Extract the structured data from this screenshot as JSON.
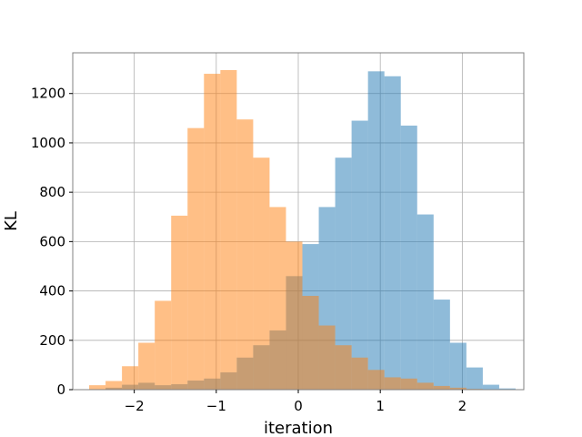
{
  "chart_data": {
    "type": "histogram",
    "xlabel": "iteration",
    "ylabel": "KL",
    "xlim": [
      -2.75,
      2.75
    ],
    "ylim": [
      0,
      1365
    ],
    "grid": true,
    "xticks": [
      {
        "value": -2,
        "label": "−2"
      },
      {
        "value": -1,
        "label": "−1"
      },
      {
        "value": 0,
        "label": "0"
      },
      {
        "value": 1,
        "label": "1"
      },
      {
        "value": 2,
        "label": "2"
      }
    ],
    "yticks": [
      0,
      200,
      400,
      600,
      800,
      1000,
      1200
    ],
    "series": [
      {
        "color": "#1f77b4",
        "opacity": 0.5,
        "bins": [
          [
            -2.55,
            -2.35,
            2
          ],
          [
            -2.35,
            -2.15,
            8
          ],
          [
            -2.15,
            -1.95,
            20
          ],
          [
            -1.95,
            -1.75,
            28
          ],
          [
            -1.75,
            -1.55,
            18
          ],
          [
            -1.55,
            -1.35,
            22
          ],
          [
            -1.35,
            -1.15,
            37
          ],
          [
            -1.15,
            -0.95,
            45
          ],
          [
            -0.95,
            -0.75,
            70
          ],
          [
            -0.75,
            -0.55,
            130
          ],
          [
            -0.55,
            -0.35,
            180
          ],
          [
            -0.35,
            -0.15,
            240
          ],
          [
            -0.15,
            0.05,
            460
          ],
          [
            0.05,
            0.25,
            590
          ],
          [
            0.25,
            0.45,
            740
          ],
          [
            0.45,
            0.65,
            940
          ],
          [
            0.65,
            0.85,
            1090
          ],
          [
            0.85,
            1.05,
            1290
          ],
          [
            1.05,
            1.25,
            1270
          ],
          [
            1.25,
            1.45,
            1070
          ],
          [
            1.45,
            1.65,
            710
          ],
          [
            1.65,
            1.85,
            365
          ],
          [
            1.85,
            2.05,
            190
          ],
          [
            2.05,
            2.25,
            90
          ],
          [
            2.25,
            2.45,
            20
          ],
          [
            2.45,
            2.65,
            5
          ]
        ]
      },
      {
        "color": "#ff7f0e",
        "opacity": 0.5,
        "bins": [
          [
            -2.55,
            -2.35,
            18
          ],
          [
            -2.35,
            -2.15,
            35
          ],
          [
            -2.15,
            -1.95,
            95
          ],
          [
            -1.95,
            -1.75,
            190
          ],
          [
            -1.75,
            -1.55,
            360
          ],
          [
            -1.55,
            -1.35,
            705
          ],
          [
            -1.35,
            -1.15,
            1060
          ],
          [
            -1.15,
            -0.95,
            1280
          ],
          [
            -0.95,
            -0.75,
            1295
          ],
          [
            -0.75,
            -0.55,
            1095
          ],
          [
            -0.55,
            -0.35,
            940
          ],
          [
            -0.35,
            -0.15,
            740
          ],
          [
            -0.15,
            0.05,
            600
          ],
          [
            0.05,
            0.25,
            380
          ],
          [
            0.25,
            0.45,
            260
          ],
          [
            0.45,
            0.65,
            180
          ],
          [
            0.65,
            0.85,
            130
          ],
          [
            0.85,
            1.05,
            80
          ],
          [
            1.05,
            1.25,
            50
          ],
          [
            1.25,
            1.45,
            45
          ],
          [
            1.45,
            1.65,
            28
          ],
          [
            1.65,
            1.85,
            15
          ],
          [
            1.85,
            2.05,
            8
          ],
          [
            2.05,
            2.25,
            3
          ]
        ]
      }
    ]
  }
}
